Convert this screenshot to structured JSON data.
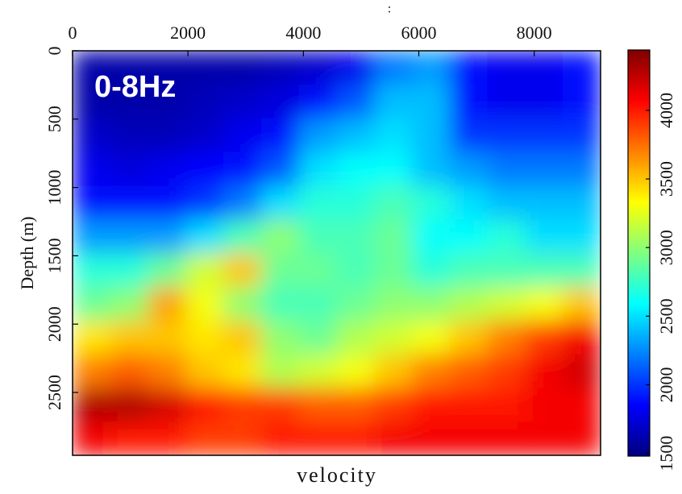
{
  "chart_data": {
    "type": "heatmap",
    "title": "0-8Hz",
    "annotation": ":",
    "xlabel": "velocity",
    "ylabel": "Depth (m)",
    "xlim": [
      0,
      9150
    ],
    "xticks": [
      0,
      2000,
      4000,
      6000,
      8000
    ],
    "ylim": [
      0,
      2960
    ],
    "yticks": [
      0,
      500,
      1000,
      1500,
      2000,
      2500
    ],
    "clim": [
      1480,
      4440
    ],
    "cticks": [
      1500,
      2000,
      2500,
      3000,
      3500,
      4000
    ],
    "colormap": [
      "#00007f",
      "#0000ff",
      "#0080ff",
      "#00ffff",
      "#80ff80",
      "#ffff00",
      "#ff8000",
      "#ff0000",
      "#7f0000"
    ],
    "z": [
      [
        1600,
        1600,
        1600,
        1600,
        1600,
        1650,
        1700,
        1800,
        2200,
        2300,
        1900,
        1800,
        1800,
        1900
      ],
      [
        1600,
        1600,
        1600,
        1650,
        1700,
        1750,
        1900,
        2100,
        2400,
        2400,
        1900,
        1800,
        1800,
        1900
      ],
      [
        1700,
        1650,
        1650,
        1700,
        1800,
        1900,
        2300,
        2400,
        2500,
        2400,
        2000,
        2000,
        2000,
        2000
      ],
      [
        1800,
        1750,
        1800,
        1850,
        1900,
        2100,
        2500,
        2600,
        2600,
        2400,
        2300,
        2200,
        2200,
        2200
      ],
      [
        1900,
        1900,
        1900,
        2000,
        2200,
        2500,
        2700,
        2700,
        2800,
        2700,
        2500,
        2400,
        2400,
        2400
      ],
      [
        2300,
        2300,
        2300,
        2500,
        2800,
        3000,
        2800,
        2800,
        2900,
        2600,
        2600,
        2700,
        2500,
        2500
      ],
      [
        2700,
        2700,
        2900,
        3200,
        3500,
        2900,
        2900,
        2800,
        2900,
        2700,
        2800,
        2800,
        2800,
        2800
      ],
      [
        2900,
        3000,
        3600,
        3300,
        3000,
        2800,
        2800,
        2900,
        3000,
        3000,
        3100,
        3200,
        3300,
        3500
      ],
      [
        3400,
        3500,
        3500,
        3400,
        3500,
        3000,
        2900,
        3100,
        3200,
        3300,
        3500,
        3700,
        3900,
        4100
      ],
      [
        3700,
        3800,
        3700,
        3500,
        3400,
        3100,
        3200,
        3300,
        3500,
        3700,
        3800,
        3900,
        4100,
        4200
      ],
      [
        4300,
        4300,
        4200,
        4000,
        3900,
        3900,
        3800,
        3800,
        3900,
        4000,
        4000,
        4000,
        4100,
        4100
      ],
      [
        4100,
        4000,
        4000,
        3900,
        3900,
        4000,
        4000,
        4000,
        4100,
        4100,
        4100,
        4100,
        4100,
        4100
      ]
    ]
  }
}
